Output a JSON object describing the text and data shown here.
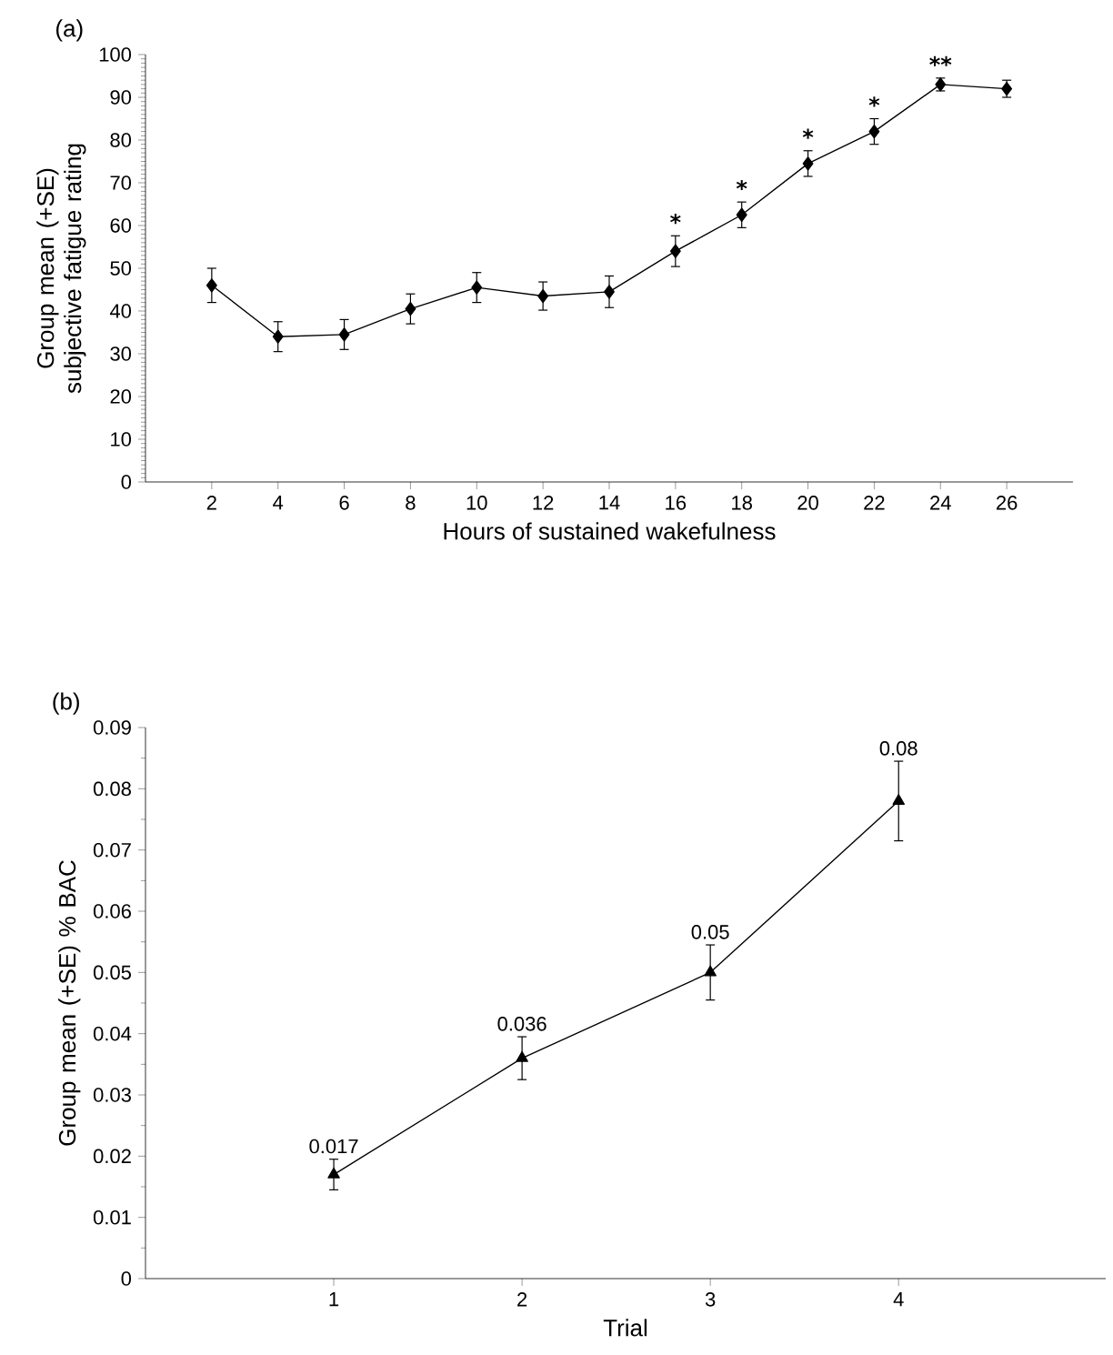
{
  "chart_data": [
    {
      "type": "line",
      "title": "(a)",
      "xlabel": "Hours of sustained wakefulness",
      "ylabel": "Group mean (+SE) subjective fatigue rating",
      "categories": [
        "2",
        "4",
        "6",
        "8",
        "10",
        "12",
        "14",
        "16",
        "18",
        "20",
        "22",
        "24",
        "26"
      ],
      "series": [
        {
          "color": "#000000",
          "values": [
            46,
            34,
            34.5,
            40.5,
            45.5,
            43.5,
            44.5,
            54,
            62.5,
            74.5,
            82,
            93,
            92
          ],
          "errors": [
            4,
            3.5,
            3.5,
            3.5,
            3.5,
            3.3,
            3.7,
            3.6,
            3,
            3,
            3,
            1.5,
            2
          ]
        }
      ],
      "ylim": [
        0,
        100
      ],
      "yticks": [
        0,
        10,
        20,
        30,
        40,
        50,
        60,
        70,
        80,
        90,
        100
      ],
      "marker": "diamond",
      "annotations": [
        {
          "text": "*",
          "x": "16",
          "y": 54
        },
        {
          "text": "*",
          "x": "18",
          "y": 62.5
        },
        {
          "text": "*",
          "x": "20",
          "y": 74.5
        },
        {
          "text": "*",
          "x": "22",
          "y": 82
        },
        {
          "text": "**",
          "x": "24",
          "y": 93
        }
      ]
    },
    {
      "type": "line",
      "title": "(b)",
      "xlabel": "Trial",
      "ylabel": "Group mean (+SE) % BAC",
      "categories": [
        "1",
        "2",
        "3",
        "4"
      ],
      "series": [
        {
          "color": "#000000",
          "values": [
            0.017,
            0.036,
            0.05,
            0.078
          ],
          "errors": [
            0.0025,
            0.0035,
            0.0045,
            0.0065
          ],
          "value_labels": [
            "0.017",
            "0.036",
            "0.05",
            "0.08"
          ]
        }
      ],
      "ylim": [
        0,
        0.09
      ],
      "yticks": [
        0,
        0.01,
        0.02,
        0.03,
        0.04,
        0.05,
        0.06,
        0.07,
        0.08,
        0.09
      ],
      "marker": "triangle"
    }
  ]
}
